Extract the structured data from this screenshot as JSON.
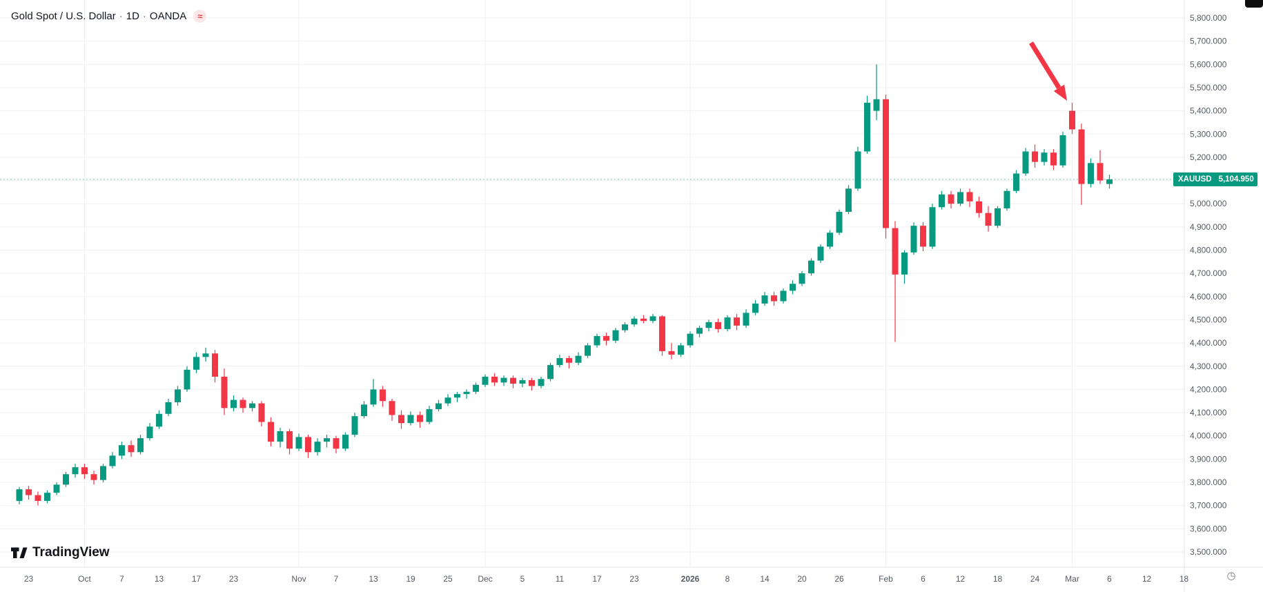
{
  "header": {
    "symbol_title": "Gold Spot / U.S. Dollar",
    "separator": "·",
    "interval": "1D",
    "exchange": "OANDA",
    "provider_glyph": "≈"
  },
  "watermark": {
    "brand": "TradingView"
  },
  "price_label": {
    "symbol": "XAUUSD",
    "value": "5,104.950",
    "color": "#089981"
  },
  "annotation": {
    "type": "arrow-down-right",
    "color": "#f23645"
  },
  "colors": {
    "up": "#089981",
    "down": "#f23645",
    "grid": "#f0f1f3",
    "border": "#e0e3eb",
    "axis_text": "#555a64",
    "background": "#ffffff"
  },
  "price_scale": {
    "labels": [
      "5,800.000",
      "5,700.000",
      "5,600.000",
      "5,500.000",
      "5,400.000",
      "5,300.000",
      "5,200.000",
      "5,100.000",
      "5,000.000",
      "4,900.000",
      "4,800.000",
      "4,700.000",
      "4,600.000",
      "4,500.000",
      "4,400.000",
      "4,300.000",
      "4,200.000",
      "4,100.000",
      "4,000.000",
      "3,900.000",
      "3,800.000",
      "3,700.000",
      "3,600.000",
      "3,500.000"
    ]
  },
  "time_scale": {
    "ticks": [
      {
        "label": "23",
        "index": 1
      },
      {
        "label": "Oct",
        "index": 7,
        "major": true
      },
      {
        "label": "7",
        "index": 11
      },
      {
        "label": "13",
        "index": 15
      },
      {
        "label": "17",
        "index": 19
      },
      {
        "label": "23",
        "index": 23
      },
      {
        "label": "Nov",
        "index": 30,
        "major": true
      },
      {
        "label": "7",
        "index": 34
      },
      {
        "label": "13",
        "index": 38
      },
      {
        "label": "19",
        "index": 42
      },
      {
        "label": "25",
        "index": 46
      },
      {
        "label": "Dec",
        "index": 50,
        "major": true
      },
      {
        "label": "5",
        "index": 54
      },
      {
        "label": "11",
        "index": 58
      },
      {
        "label": "17",
        "index": 62
      },
      {
        "label": "23",
        "index": 66
      },
      {
        "label": "2026",
        "index": 72,
        "major": true,
        "year": true
      },
      {
        "label": "8",
        "index": 76
      },
      {
        "label": "14",
        "index": 80
      },
      {
        "label": "20",
        "index": 84
      },
      {
        "label": "26",
        "index": 88
      },
      {
        "label": "Feb",
        "index": 93,
        "major": true
      },
      {
        "label": "6",
        "index": 97
      },
      {
        "label": "12",
        "index": 101
      },
      {
        "label": "18",
        "index": 105
      },
      {
        "label": "24",
        "index": 109
      },
      {
        "label": "Mar",
        "index": 113,
        "major": true
      },
      {
        "label": "6",
        "index": 117
      },
      {
        "label": "12",
        "index": 121
      },
      {
        "label": "18",
        "index": 125
      }
    ]
  },
  "chart_data": {
    "type": "candlestick",
    "symbol": "XAUUSD",
    "description": "Gold Spot / U.S. Dollar",
    "interval": "1D",
    "exchange": "OANDA",
    "last_price": 5104.95,
    "y_axis": {
      "min": 3500,
      "max": 5800,
      "step": 100
    },
    "annotation": "red arrow drawn pointing down-right at the Mar 2 gap-up reversal candle near 5,400",
    "columns": [
      "date",
      "open",
      "high",
      "low",
      "close"
    ],
    "candles": [
      [
        "Sep 22",
        3720,
        3780,
        3705,
        3770
      ],
      [
        "Sep 23",
        3770,
        3785,
        3725,
        3745
      ],
      [
        "Sep 24",
        3745,
        3760,
        3700,
        3720
      ],
      [
        "Sep 25",
        3720,
        3765,
        3710,
        3755
      ],
      [
        "Sep 26",
        3755,
        3800,
        3745,
        3790
      ],
      [
        "Sep 29",
        3790,
        3845,
        3780,
        3835
      ],
      [
        "Sep 30",
        3835,
        3880,
        3820,
        3865
      ],
      [
        "Oct 1",
        3865,
        3880,
        3815,
        3835
      ],
      [
        "Oct 2",
        3835,
        3850,
        3790,
        3810
      ],
      [
        "Oct 3",
        3810,
        3880,
        3800,
        3870
      ],
      [
        "Oct 6",
        3870,
        3930,
        3860,
        3915
      ],
      [
        "Oct 7",
        3915,
        3975,
        3900,
        3960
      ],
      [
        "Oct 8",
        3960,
        3980,
        3910,
        3930
      ],
      [
        "Oct 9",
        3930,
        4005,
        3920,
        3990
      ],
      [
        "Oct 10",
        3990,
        4055,
        3980,
        4040
      ],
      [
        "Oct 13",
        4040,
        4110,
        4030,
        4095
      ],
      [
        "Oct 14",
        4095,
        4160,
        4085,
        4145
      ],
      [
        "Oct 15",
        4145,
        4215,
        4130,
        4200
      ],
      [
        "Oct 16",
        4200,
        4300,
        4190,
        4285
      ],
      [
        "Oct 17",
        4285,
        4360,
        4270,
        4340
      ],
      [
        "Oct 20",
        4340,
        4380,
        4320,
        4355
      ],
      [
        "Oct 21",
        4355,
        4370,
        4230,
        4255
      ],
      [
        "Oct 22",
        4255,
        4290,
        4090,
        4120
      ],
      [
        "Oct 23",
        4120,
        4175,
        4105,
        4155
      ],
      [
        "Oct 24",
        4155,
        4165,
        4100,
        4120
      ],
      [
        "Oct 27",
        4120,
        4150,
        4105,
        4140
      ],
      [
        "Oct 28",
        4140,
        4150,
        4040,
        4060
      ],
      [
        "Oct 29",
        4060,
        4080,
        3955,
        3975
      ],
      [
        "Oct 30",
        3975,
        4035,
        3950,
        4020
      ],
      [
        "Oct 31",
        4020,
        4030,
        3920,
        3945
      ],
      [
        "Nov 3",
        3945,
        4010,
        3935,
        3995
      ],
      [
        "Nov 4",
        3995,
        4005,
        3905,
        3930
      ],
      [
        "Nov 5",
        3930,
        3990,
        3915,
        3975
      ],
      [
        "Nov 6",
        3975,
        4005,
        3950,
        3990
      ],
      [
        "Nov 7",
        3990,
        4000,
        3925,
        3945
      ],
      [
        "Nov 10",
        3945,
        4015,
        3935,
        4005
      ],
      [
        "Nov 11",
        4005,
        4100,
        3995,
        4085
      ],
      [
        "Nov 12",
        4085,
        4150,
        4075,
        4135
      ],
      [
        "Nov 13",
        4135,
        4245,
        4125,
        4200
      ],
      [
        "Nov 14",
        4200,
        4215,
        4125,
        4150
      ],
      [
        "Nov 17",
        4150,
        4160,
        4065,
        4090
      ],
      [
        "Nov 18",
        4090,
        4110,
        4030,
        4055
      ],
      [
        "Nov 19",
        4055,
        4105,
        4045,
        4090
      ],
      [
        "Nov 20",
        4090,
        4105,
        4035,
        4060
      ],
      [
        "Nov 21",
        4060,
        4130,
        4050,
        4115
      ],
      [
        "Nov 24",
        4115,
        4155,
        4105,
        4140
      ],
      [
        "Nov 25",
        4140,
        4180,
        4128,
        4165
      ],
      [
        "Nov 26",
        4165,
        4190,
        4145,
        4180
      ],
      [
        "Nov 27",
        4180,
        4200,
        4160,
        4190
      ],
      [
        "Nov 28",
        4190,
        4230,
        4180,
        4220
      ],
      [
        "Dec 1",
        4220,
        4265,
        4210,
        4255
      ],
      [
        "Dec 2",
        4255,
        4270,
        4215,
        4230
      ],
      [
        "Dec 3",
        4230,
        4260,
        4215,
        4250
      ],
      [
        "Dec 4",
        4250,
        4260,
        4205,
        4225
      ],
      [
        "Dec 5",
        4225,
        4250,
        4210,
        4240
      ],
      [
        "Dec 8",
        4240,
        4250,
        4195,
        4215
      ],
      [
        "Dec 9",
        4215,
        4255,
        4205,
        4245
      ],
      [
        "Dec 10",
        4245,
        4315,
        4235,
        4305
      ],
      [
        "Dec 11",
        4305,
        4350,
        4295,
        4335
      ],
      [
        "Dec 12",
        4335,
        4345,
        4290,
        4315
      ],
      [
        "Dec 15",
        4315,
        4360,
        4305,
        4345
      ],
      [
        "Dec 16",
        4345,
        4400,
        4335,
        4390
      ],
      [
        "Dec 17",
        4390,
        4440,
        4380,
        4430
      ],
      [
        "Dec 18",
        4430,
        4445,
        4390,
        4410
      ],
      [
        "Dec 19",
        4410,
        4465,
        4400,
        4455
      ],
      [
        "Dec 22",
        4455,
        4490,
        4445,
        4480
      ],
      [
        "Dec 23",
        4480,
        4515,
        4470,
        4505
      ],
      [
        "Dec 24",
        4505,
        4520,
        4485,
        4495
      ],
      [
        "Dec 26",
        4495,
        4525,
        4485,
        4515
      ],
      [
        "Dec 29",
        4515,
        4520,
        4345,
        4365
      ],
      [
        "Dec 30",
        4365,
        4400,
        4330,
        4350
      ],
      [
        "Dec 31",
        4350,
        4400,
        4340,
        4390
      ],
      [
        "Jan 2",
        4390,
        4450,
        4380,
        4440
      ],
      [
        "Jan 5",
        4440,
        4475,
        4425,
        4465
      ],
      [
        "Jan 6",
        4465,
        4500,
        4450,
        4490
      ],
      [
        "Jan 7",
        4490,
        4505,
        4445,
        4460
      ],
      [
        "Jan 8",
        4460,
        4520,
        4450,
        4510
      ],
      [
        "Jan 9",
        4510,
        4525,
        4455,
        4475
      ],
      [
        "Jan 12",
        4475,
        4545,
        4465,
        4530
      ],
      [
        "Jan 13",
        4530,
        4585,
        4520,
        4570
      ],
      [
        "Jan 14",
        4570,
        4620,
        4560,
        4605
      ],
      [
        "Jan 15",
        4605,
        4620,
        4560,
        4580
      ],
      [
        "Jan 16",
        4580,
        4635,
        4570,
        4625
      ],
      [
        "Jan 19",
        4625,
        4670,
        4610,
        4655
      ],
      [
        "Jan 20",
        4655,
        4710,
        4645,
        4700
      ],
      [
        "Jan 21",
        4700,
        4765,
        4690,
        4755
      ],
      [
        "Jan 22",
        4755,
        4825,
        4745,
        4815
      ],
      [
        "Jan 23",
        4815,
        4885,
        4805,
        4875
      ],
      [
        "Jan 26",
        4875,
        4975,
        4865,
        4965
      ],
      [
        "Jan 27",
        4965,
        5080,
        4955,
        5065
      ],
      [
        "Jan 28",
        5065,
        5245,
        5055,
        5225
      ],
      [
        "Jan 29",
        5225,
        5465,
        5215,
        5435
      ],
      [
        "Jan 30",
        5400,
        5600,
        5360,
        5450
      ],
      [
        "Feb 2",
        5450,
        5470,
        4850,
        4895
      ],
      [
        "Feb 3",
        4895,
        4925,
        4405,
        4695
      ],
      [
        "Feb 4",
        4695,
        4800,
        4655,
        4790
      ],
      [
        "Feb 5",
        4790,
        4920,
        4780,
        4905
      ],
      [
        "Feb 6",
        4905,
        4920,
        4795,
        4815
      ],
      [
        "Feb 9",
        4815,
        5000,
        4805,
        4985
      ],
      [
        "Feb 10",
        4985,
        5055,
        4975,
        5040
      ],
      [
        "Feb 11",
        5040,
        5055,
        4980,
        5000
      ],
      [
        "Feb 12",
        5000,
        5065,
        4990,
        5050
      ],
      [
        "Feb 13",
        5050,
        5065,
        4985,
        5010
      ],
      [
        "Feb 16",
        5010,
        5030,
        4940,
        4960
      ],
      [
        "Feb 17",
        4960,
        4990,
        4880,
        4905
      ],
      [
        "Feb 18",
        4905,
        4990,
        4895,
        4980
      ],
      [
        "Feb 19",
        4980,
        5065,
        4970,
        5055
      ],
      [
        "Feb 20",
        5055,
        5145,
        5045,
        5130
      ],
      [
        "Feb 23",
        5130,
        5240,
        5120,
        5225
      ],
      [
        "Feb 24",
        5225,
        5255,
        5155,
        5180
      ],
      [
        "Feb 25",
        5180,
        5235,
        5165,
        5220
      ],
      [
        "Feb 26",
        5220,
        5235,
        5145,
        5165
      ],
      [
        "Feb 27",
        5165,
        5310,
        5155,
        5295
      ],
      [
        "Mar 2",
        5400,
        5435,
        5300,
        5320
      ],
      [
        "Mar 3",
        5320,
        5345,
        4995,
        5085
      ],
      [
        "Mar 4",
        5085,
        5195,
        5070,
        5175
      ],
      [
        "Mar 5",
        5175,
        5230,
        5085,
        5100
      ],
      [
        "Mar 6",
        5085,
        5125,
        5065,
        5104.95
      ]
    ]
  }
}
